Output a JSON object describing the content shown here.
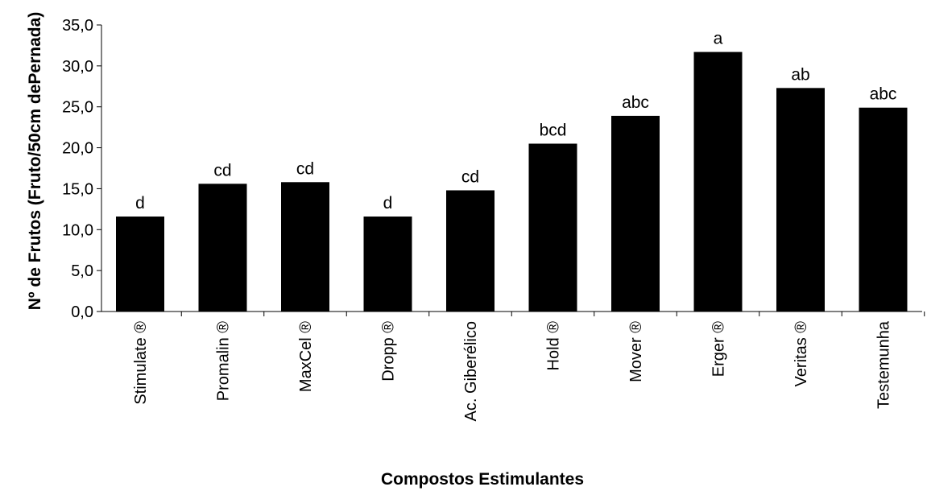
{
  "chart_data": {
    "type": "bar",
    "title": "",
    "xlabel": "Compostos Estimulantes",
    "ylabel": "Nº de Frutos (Fruto/50cm dePernada)",
    "categories": [
      "Stimulate ®",
      "Promalin ®",
      "MaxCel ®",
      "Dropp ®",
      "Ac. Giberélico",
      "Hold ®",
      "Mover ®",
      "Erger ®",
      "Veritas ®",
      "Testemunha"
    ],
    "values": [
      11.6,
      15.6,
      15.8,
      11.6,
      14.8,
      20.5,
      23.9,
      31.7,
      27.3,
      24.9
    ],
    "bar_labels": [
      "d",
      "cd",
      "cd",
      "d",
      "cd",
      "bcd",
      "abc",
      "a",
      "ab",
      "abc"
    ],
    "y_ticks": [
      "0,0",
      "5,0",
      "10,0",
      "15,0",
      "20,0",
      "25,0",
      "30,0",
      "35,0"
    ],
    "ylim": [
      0,
      35
    ],
    "grid": false,
    "legend": "none",
    "bar_color": "#000000"
  }
}
